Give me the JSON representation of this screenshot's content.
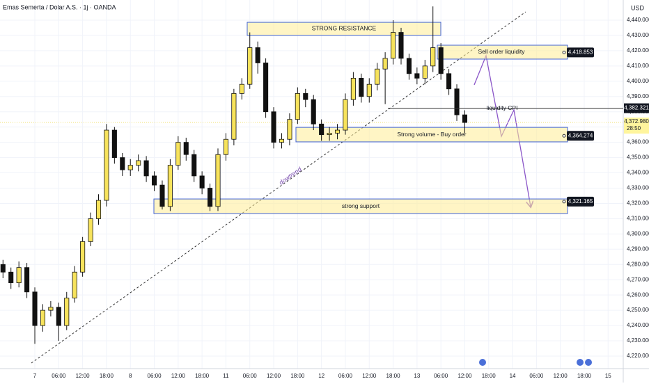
{
  "chart_data": {
    "type": "candlestick",
    "title": "Emas Semerta / Dolar A.S. · 1j · OANDA",
    "currency": "USD",
    "up_color": "#f7e35c",
    "down_color": "#111111",
    "x": [
      -8,
      -6,
      -4,
      -2,
      0,
      2,
      4,
      6,
      8,
      10,
      12,
      14,
      16,
      18,
      20,
      22,
      24,
      26,
      28,
      30,
      32,
      34,
      36,
      38,
      40,
      42,
      44,
      46,
      48,
      50,
      52,
      54,
      56,
      58,
      60,
      62,
      64,
      66,
      68,
      70,
      72,
      74,
      76,
      78,
      80,
      82,
      84,
      86,
      88,
      90,
      92,
      94,
      96,
      98,
      100,
      102,
      104,
      106,
      108
    ],
    "open": [
      4280,
      4275,
      4268,
      4278,
      4262,
      4240,
      4250,
      4252,
      4240,
      4258,
      4275,
      4295,
      4310,
      4322,
      4368,
      4350,
      4342,
      4345,
      4348,
      4338,
      4332,
      4318,
      4345,
      4360,
      4352,
      4338,
      4330,
      4318,
      4352,
      4362,
      4392,
      4398,
      4422,
      4412,
      4380,
      4360,
      4362,
      4375,
      4392,
      4388,
      4372,
      4365,
      4366,
      4368,
      4388,
      4402,
      4390,
      4398,
      4408,
      4415,
      4432,
      4415,
      4405,
      4402,
      4410,
      4422,
      4405,
      4395,
      4378
    ],
    "high": [
      4283,
      4278,
      4282,
      4281,
      4265,
      4254,
      4256,
      4255,
      4262,
      4279,
      4298,
      4314,
      4326,
      4372,
      4370,
      4353,
      4349,
      4352,
      4351,
      4341,
      4335,
      4349,
      4364,
      4363,
      4355,
      4341,
      4333,
      4356,
      4366,
      4395,
      4402,
      4432,
      4426,
      4415,
      4383,
      4366,
      4379,
      4396,
      4395,
      4391,
      4375,
      4370,
      4372,
      4392,
      4406,
      4405,
      4402,
      4412,
      4419,
      4440,
      4435,
      4418,
      4409,
      4414,
      4449,
      4425,
      4408,
      4398,
      4381
    ],
    "low": [
      4271,
      4264,
      4265,
      4258,
      4228,
      4236,
      4246,
      4230,
      4237,
      4255,
      4272,
      4292,
      4306,
      4318,
      4346,
      4338,
      4338,
      4341,
      4334,
      4328,
      4316,
      4315,
      4342,
      4348,
      4334,
      4326,
      4315,
      4315,
      4348,
      4358,
      4388,
      4395,
      4405,
      4376,
      4356,
      4356,
      4358,
      4372,
      4383,
      4368,
      4361,
      4361,
      4362,
      4365,
      4384,
      4386,
      4386,
      4394,
      4385,
      4411,
      4411,
      4401,
      4398,
      4398,
      4406,
      4401,
      4391,
      4374,
      4366
    ],
    "close": [
      4275,
      4268,
      4278,
      4262,
      4240,
      4250,
      4252,
      4240,
      4258,
      4275,
      4295,
      4310,
      4322,
      4368,
      4350,
      4342,
      4345,
      4348,
      4338,
      4332,
      4318,
      4345,
      4360,
      4352,
      4338,
      4330,
      4318,
      4352,
      4362,
      4392,
      4398,
      4422,
      4412,
      4380,
      4360,
      4362,
      4375,
      4392,
      4388,
      4372,
      4365,
      4366,
      4368,
      4388,
      4402,
      4390,
      4398,
      4408,
      4415,
      4432,
      4415,
      4405,
      4402,
      4410,
      4422,
      4405,
      4395,
      4378,
      4372.98
    ],
    "xlim": [
      -8.75,
      147.8
    ],
    "ylim": [
      4211.8,
      4453.2
    ],
    "xticks": [
      {
        "value": 0,
        "label": "7"
      },
      {
        "value": 6,
        "label": "06:00"
      },
      {
        "value": 12,
        "label": "12:00"
      },
      {
        "value": 18,
        "label": "18:00"
      },
      {
        "value": 24,
        "label": "8"
      },
      {
        "value": 30,
        "label": "06:00"
      },
      {
        "value": 36,
        "label": "12:00"
      },
      {
        "value": 42,
        "label": "18:00"
      },
      {
        "value": 48,
        "label": "11"
      },
      {
        "value": 54,
        "label": "06:00"
      },
      {
        "value": 60,
        "label": "12:00"
      },
      {
        "value": 66,
        "label": "18:00"
      },
      {
        "value": 72,
        "label": "12"
      },
      {
        "value": 78,
        "label": "06:00"
      },
      {
        "value": 84,
        "label": "12:00"
      },
      {
        "value": 90,
        "label": "18:00"
      },
      {
        "value": 96,
        "label": "13"
      },
      {
        "value": 102,
        "label": "06:00"
      },
      {
        "value": 108,
        "label": "12:00"
      },
      {
        "value": 114,
        "label": "18:00"
      },
      {
        "value": 120,
        "label": "14"
      },
      {
        "value": 126,
        "label": "06:00"
      },
      {
        "value": 132,
        "label": "12:00"
      },
      {
        "value": 138,
        "label": "18:00"
      },
      {
        "value": 144,
        "label": "15"
      }
    ],
    "yticks": [
      {
        "value": 4220,
        "label": "4,220.000"
      },
      {
        "value": 4230,
        "label": "4,230.000"
      },
      {
        "value": 4240,
        "label": "4,240.000"
      },
      {
        "value": 4250,
        "label": "4,250.000"
      },
      {
        "value": 4260,
        "label": "4,260.000"
      },
      {
        "value": 4270,
        "label": "4,270.000"
      },
      {
        "value": 4280,
        "label": "4,280.000"
      },
      {
        "value": 4290,
        "label": "4,290.000"
      },
      {
        "value": 4300,
        "label": "4,300.000"
      },
      {
        "value": 4310,
        "label": "4,310.000"
      },
      {
        "value": 4320,
        "label": "4,320.000"
      },
      {
        "value": 4330,
        "label": "4,330.000"
      },
      {
        "value": 4340,
        "label": "4,340.000"
      },
      {
        "value": 4350,
        "label": "4,350.000"
      },
      {
        "value": 4360,
        "label": "4,360.000"
      },
      {
        "value": 4370,
        "label": "4,370.000"
      },
      {
        "value": 4380,
        "label": "4,380.000"
      },
      {
        "value": 4390,
        "label": "4,390.000"
      },
      {
        "value": 4400,
        "label": "4,400.000"
      },
      {
        "value": 4410,
        "label": "4,410.000"
      },
      {
        "value": 4420,
        "label": "4,420.000"
      },
      {
        "value": 4430,
        "label": "4,430.000"
      },
      {
        "value": 4440,
        "label": "4,440.000"
      }
    ],
    "zones": [
      {
        "label": "STRONG RESISTANCE",
        "range": [
          4430,
          4438.6
        ]
      },
      {
        "label": "Sell order liquidity",
        "range": [
          4414.5,
          4423.6
        ],
        "level": 4418.853,
        "level_label": "4,418.853"
      },
      {
        "label": "Strong volume - Buy order",
        "range": [
          4360.3,
          4369.8
        ],
        "level": 4364.274,
        "level_label": "4,364.274"
      },
      {
        "label": "strong support",
        "range": [
          4313.3,
          4322.9
        ],
        "level": 4321.165,
        "level_label": "4,321.165"
      }
    ],
    "cpi_line": {
      "text": "liquidity CPI",
      "value": 4382.321,
      "label": "4,382.321"
    },
    "last_price": {
      "value": 4372.98,
      "label": "4,372.980",
      "countdown": "28:50"
    },
    "trendline_label": "dowtrend"
  }
}
